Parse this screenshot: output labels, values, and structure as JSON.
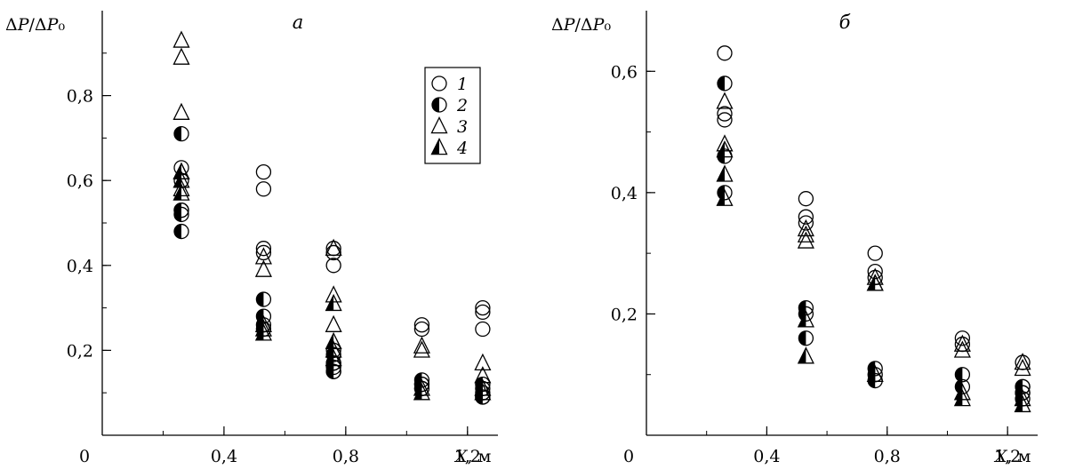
{
  "chart_data": [
    {
      "type": "scatter",
      "title": "а",
      "ylabel": "ΔP/ΔP₀",
      "xlabel": "X, м",
      "origin_label": "0",
      "xlim": [
        0,
        1.3
      ],
      "ylim": [
        0,
        1.0
      ],
      "x_ticks": [
        {
          "value": 0.4,
          "label": "0,4"
        },
        {
          "value": 0.8,
          "label": "0,8"
        },
        {
          "value": 1.2,
          "label": "1,2"
        }
      ],
      "y_ticks": [
        {
          "value": 0.2,
          "label": "0,2"
        },
        {
          "value": 0.4,
          "label": "0,4"
        },
        {
          "value": 0.6,
          "label": "0,6"
        },
        {
          "value": 0.8,
          "label": "0,8"
        }
      ],
      "legend": {
        "position": "top-right",
        "entries": [
          {
            "marker": "circle-open",
            "label": "1"
          },
          {
            "marker": "circle-half",
            "label": "2"
          },
          {
            "marker": "triangle-open",
            "label": "3"
          },
          {
            "marker": "triangle-half",
            "label": "4"
          }
        ]
      },
      "series": [
        {
          "marker": "circle-open",
          "points": [
            [
              0.26,
              0.63
            ],
            [
              0.26,
              0.6
            ],
            [
              0.26,
              0.53
            ],
            [
              0.53,
              0.62
            ],
            [
              0.53,
              0.58
            ],
            [
              0.53,
              0.44
            ],
            [
              0.53,
              0.43
            ],
            [
              0.76,
              0.44
            ],
            [
              0.76,
              0.43
            ],
            [
              0.76,
              0.4
            ],
            [
              0.76,
              0.2
            ],
            [
              0.76,
              0.17
            ],
            [
              0.76,
              0.15
            ],
            [
              1.05,
              0.25
            ],
            [
              1.05,
              0.26
            ],
            [
              1.05,
              0.12
            ],
            [
              1.05,
              0.11
            ],
            [
              1.25,
              0.3
            ],
            [
              1.25,
              0.29
            ],
            [
              1.25,
              0.25
            ],
            [
              1.25,
              0.11
            ],
            [
              1.25,
              0.09
            ]
          ]
        },
        {
          "marker": "circle-half",
          "points": [
            [
              0.26,
              0.71
            ],
            [
              0.26,
              0.53
            ],
            [
              0.26,
              0.52
            ],
            [
              0.26,
              0.48
            ],
            [
              0.53,
              0.32
            ],
            [
              0.53,
              0.28
            ],
            [
              0.53,
              0.26
            ],
            [
              0.53,
              0.25
            ],
            [
              0.76,
              0.19
            ],
            [
              0.76,
              0.17
            ],
            [
              0.76,
              0.16
            ],
            [
              0.76,
              0.15
            ],
            [
              1.05,
              0.13
            ],
            [
              1.05,
              0.12
            ],
            [
              1.05,
              0.11
            ],
            [
              1.25,
              0.12
            ],
            [
              1.25,
              0.1
            ],
            [
              1.25,
              0.09
            ]
          ]
        },
        {
          "marker": "triangle-open",
          "points": [
            [
              0.26,
              0.93
            ],
            [
              0.26,
              0.89
            ],
            [
              0.26,
              0.76
            ],
            [
              0.26,
              0.62
            ],
            [
              0.26,
              0.58
            ],
            [
              0.53,
              0.42
            ],
            [
              0.53,
              0.39
            ],
            [
              0.76,
              0.44
            ],
            [
              0.76,
              0.33
            ],
            [
              0.76,
              0.26
            ],
            [
              1.05,
              0.21
            ],
            [
              1.05,
              0.2
            ],
            [
              1.25,
              0.17
            ],
            [
              1.25,
              0.14
            ]
          ]
        },
        {
          "marker": "triangle-half",
          "points": [
            [
              0.26,
              0.62
            ],
            [
              0.26,
              0.6
            ],
            [
              0.26,
              0.57
            ],
            [
              0.53,
              0.26
            ],
            [
              0.53,
              0.25
            ],
            [
              0.53,
              0.24
            ],
            [
              0.76,
              0.31
            ],
            [
              0.76,
              0.22
            ],
            [
              0.76,
              0.2
            ],
            [
              0.76,
              0.18
            ],
            [
              1.05,
              0.11
            ],
            [
              1.05,
              0.1
            ],
            [
              1.25,
              0.11
            ],
            [
              1.25,
              0.1
            ]
          ]
        }
      ]
    },
    {
      "type": "scatter",
      "title": "б",
      "ylabel": "ΔP/ΔP₀",
      "xlabel": "X, м",
      "origin_label": "0",
      "xlim": [
        0,
        1.3
      ],
      "ylim": [
        0,
        0.7
      ],
      "x_ticks": [
        {
          "value": 0.4,
          "label": "0,4"
        },
        {
          "value": 0.8,
          "label": "0,8"
        },
        {
          "value": 1.2,
          "label": "1,2"
        }
      ],
      "y_ticks": [
        {
          "value": 0.2,
          "label": "0,2"
        },
        {
          "value": 0.4,
          "label": "0,4"
        },
        {
          "value": 0.6,
          "label": "0,6"
        }
      ],
      "series": [
        {
          "marker": "circle-open",
          "points": [
            [
              0.26,
              0.63
            ],
            [
              0.26,
              0.53
            ],
            [
              0.26,
              0.52
            ],
            [
              0.53,
              0.39
            ],
            [
              0.53,
              0.36
            ],
            [
              0.53,
              0.35
            ],
            [
              0.76,
              0.3
            ],
            [
              0.76,
              0.27
            ],
            [
              0.76,
              0.26
            ],
            [
              1.05,
              0.16
            ],
            [
              1.05,
              0.15
            ],
            [
              1.25,
              0.12
            ],
            [
              1.25,
              0.08
            ],
            [
              1.25,
              0.07
            ]
          ]
        },
        {
          "marker": "circle-half",
          "points": [
            [
              0.26,
              0.58
            ],
            [
              0.26,
              0.46
            ],
            [
              0.26,
              0.4
            ],
            [
              0.53,
              0.21
            ],
            [
              0.53,
              0.2
            ],
            [
              0.53,
              0.16
            ],
            [
              0.76,
              0.11
            ],
            [
              0.76,
              0.1
            ],
            [
              0.76,
              0.09
            ],
            [
              1.05,
              0.1
            ],
            [
              1.05,
              0.08
            ],
            [
              1.25,
              0.08
            ],
            [
              1.25,
              0.07
            ],
            [
              1.25,
              0.06
            ]
          ]
        },
        {
          "marker": "triangle-open",
          "points": [
            [
              0.26,
              0.55
            ],
            [
              0.26,
              0.48
            ],
            [
              0.53,
              0.34
            ],
            [
              0.53,
              0.33
            ],
            [
              0.53,
              0.32
            ],
            [
              0.76,
              0.26
            ],
            [
              0.76,
              0.25
            ],
            [
              1.05,
              0.15
            ],
            [
              1.05,
              0.14
            ],
            [
              1.25,
              0.12
            ],
            [
              1.25,
              0.11
            ]
          ]
        },
        {
          "marker": "triangle-half",
          "points": [
            [
              0.26,
              0.47
            ],
            [
              0.26,
              0.43
            ],
            [
              0.26,
              0.39
            ],
            [
              0.53,
              0.19
            ],
            [
              0.53,
              0.13
            ],
            [
              0.76,
              0.25
            ],
            [
              0.76,
              0.1
            ],
            [
              1.05,
              0.07
            ],
            [
              1.05,
              0.06
            ],
            [
              1.25,
              0.06
            ],
            [
              1.25,
              0.05
            ]
          ]
        }
      ]
    }
  ]
}
